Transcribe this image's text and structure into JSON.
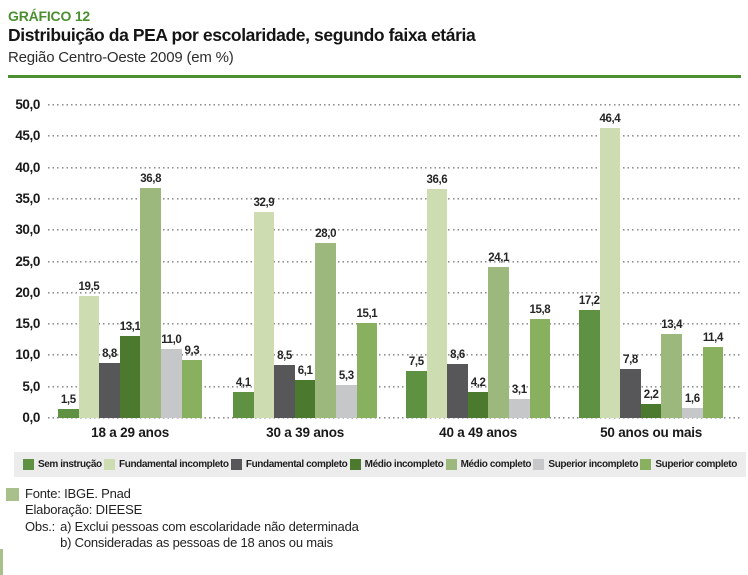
{
  "header": {
    "graph_label": "GRÁFICO 12",
    "title": "Distribuição da PEA por escolaridade, segundo faixa etária",
    "subtitle": "Região Centro-Oeste 2009 (em %)"
  },
  "chart_data": {
    "type": "bar",
    "title": "Distribuição da PEA por escolaridade, segundo faixa etária",
    "subtitle": "Região Centro-Oeste 2009 (em %)",
    "categories": [
      "18 a 29 anos",
      "30 a 39 anos",
      "40 a 49 anos",
      "50 anos ou mais"
    ],
    "series": [
      {
        "name": "Sem instrução",
        "color": "#5e9141",
        "values": [
          1.5,
          4.1,
          7.5,
          17.2
        ]
      },
      {
        "name": "Fundamental incompleto",
        "color": "#cedcb2",
        "values": [
          19.5,
          32.9,
          36.6,
          46.4
        ]
      },
      {
        "name": "Fundamental completo",
        "color": "#57575a",
        "values": [
          8.8,
          8.5,
          8.6,
          7.8
        ]
      },
      {
        "name": "Médio incompleto",
        "color": "#4b7a2e",
        "values": [
          13.1,
          6.1,
          4.2,
          2.2
        ]
      },
      {
        "name": "Médio completo",
        "color": "#9db87d",
        "values": [
          36.8,
          28.0,
          24.1,
          13.4
        ]
      },
      {
        "name": "Superior incompleto",
        "color": "#c6c7c9",
        "values": [
          11.0,
          5.3,
          3.1,
          1.6
        ]
      },
      {
        "name": "Superior completo",
        "color": "#89b05f",
        "values": [
          9.3,
          15.1,
          15.8,
          11.4
        ]
      }
    ],
    "ylim": [
      0,
      50
    ],
    "ytick_step": 5,
    "decimal_separator": ",",
    "grid": "dotted-horizontal",
    "legend_position": "bottom",
    "value_labels_shown": true
  },
  "footer": {
    "source": "Fonte: IBGE. Pnad",
    "elaboration": "Elaboração: DIEESE",
    "obs_label": "Obs.:",
    "obs_a": "a) Exclui pessoas com escolaridade não determinada",
    "obs_b": "b) Consideradas as pessoas de 18 anos ou mais"
  },
  "colors": {
    "accent_green": "#4c8f31",
    "legend_background": "#ececec",
    "footer_swatch_green": "#a9bf8c",
    "gridline_gray": "#8f8f8f"
  }
}
